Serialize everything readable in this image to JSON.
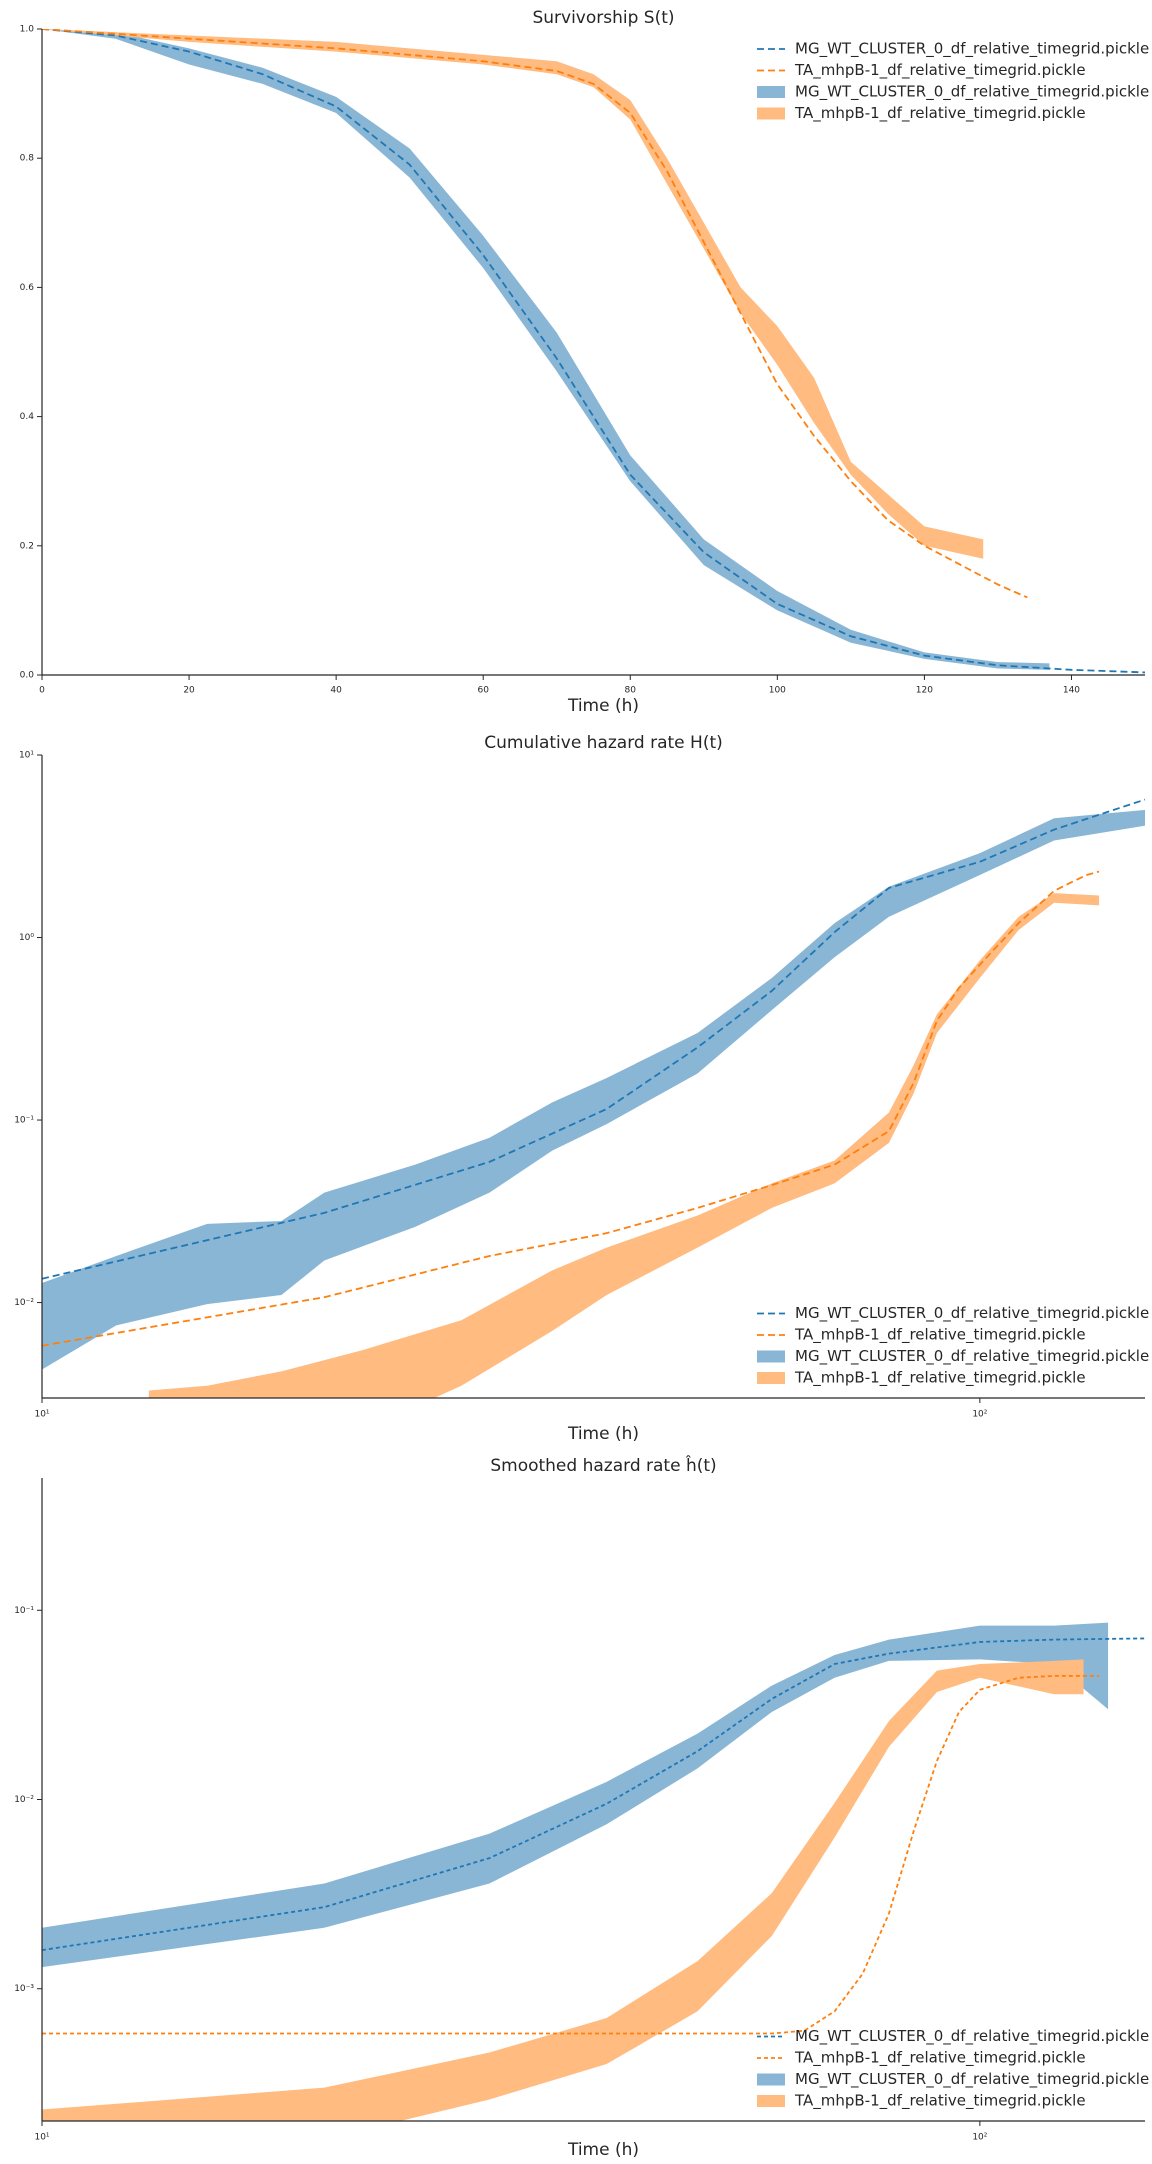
{
  "chart_data": [
    {
      "type": "line",
      "title": "Survivorship S(t)",
      "x_label": "Time (h)",
      "legend": "upper right",
      "xscale": "linear",
      "yscale": "linear",
      "grid": false,
      "xlim": [
        0,
        150
      ],
      "ylim": [
        0,
        1
      ],
      "xticks": [
        0,
        20,
        40,
        60,
        80,
        100,
        120,
        140
      ],
      "yticks": [
        {
          "value": 0,
          "label": "0.0"
        },
        0.2,
        0.4,
        0.6,
        0.8,
        {
          "value": 1,
          "label": "1.0"
        }
      ],
      "series": [
        {
          "name": "MG_WT_CLUSTER_0_df_relative_timegrid.pickle",
          "kind": "line",
          "linestyle": "dashed",
          "color": "#1f77b4",
          "x": [
            0,
            10,
            20,
            30,
            40,
            50,
            60,
            70,
            80,
            90,
            100,
            110,
            120,
            130,
            140,
            150
          ],
          "values": [
            1.0,
            0.99,
            0.965,
            0.93,
            0.88,
            0.79,
            0.65,
            0.49,
            0.31,
            0.19,
            0.11,
            0.06,
            0.03,
            0.015,
            0.008,
            0.004
          ]
        },
        {
          "name": "TA_mhpB-1_df_relative_timegrid.pickle",
          "kind": "line",
          "linestyle": "dashed",
          "color": "#ff7f0e",
          "x": [
            0,
            20,
            40,
            60,
            70,
            75,
            80,
            85,
            90,
            95,
            100,
            105,
            110,
            115,
            120,
            125,
            130,
            134
          ],
          "values": [
            1.0,
            0.985,
            0.97,
            0.95,
            0.935,
            0.915,
            0.87,
            0.78,
            0.67,
            0.56,
            0.45,
            0.37,
            0.3,
            0.24,
            0.2,
            0.17,
            0.14,
            0.12
          ]
        },
        {
          "name": "MG_WT_CLUSTER_0_df_relative_timegrid.pickle",
          "kind": "band",
          "color": "#8ab6d6",
          "x": [
            0,
            10,
            20,
            30,
            40,
            50,
            60,
            70,
            80,
            90,
            100,
            110,
            120,
            130,
            137
          ],
          "upper": [
            1.0,
            0.995,
            0.97,
            0.94,
            0.895,
            0.815,
            0.68,
            0.53,
            0.34,
            0.21,
            0.13,
            0.07,
            0.035,
            0.02,
            0.018
          ],
          "lower": [
            1.0,
            0.985,
            0.945,
            0.915,
            0.87,
            0.77,
            0.63,
            0.47,
            0.3,
            0.17,
            0.1,
            0.05,
            0.025,
            0.01,
            0.008
          ]
        },
        {
          "name": "TA_mhpB-1_df_relative_timegrid.pickle",
          "kind": "band",
          "color": "#ffbb80",
          "x": [
            0,
            20,
            40,
            60,
            70,
            75,
            80,
            85,
            90,
            95,
            100,
            105,
            110,
            115,
            120,
            128
          ],
          "upper": [
            1.0,
            0.99,
            0.98,
            0.96,
            0.95,
            0.93,
            0.89,
            0.8,
            0.7,
            0.6,
            0.54,
            0.46,
            0.33,
            0.28,
            0.23,
            0.21
          ],
          "lower": [
            1.0,
            0.98,
            0.965,
            0.945,
            0.93,
            0.91,
            0.86,
            0.76,
            0.66,
            0.56,
            0.48,
            0.39,
            0.31,
            0.25,
            0.2,
            0.18
          ]
        }
      ]
    },
    {
      "type": "line",
      "title": "Cumulative hazard rate H(t)",
      "x_label": "Time (h)",
      "legend": "lower right",
      "xscale": "log",
      "yscale": "log",
      "grid": false,
      "xlim": [
        10,
        150
      ],
      "ylim": [
        0.003,
        10
      ],
      "xticks": [
        {
          "value": 10,
          "label": "10¹"
        },
        {
          "value": 100,
          "label": "10²"
        }
      ],
      "yticks": [
        {
          "value": 0.01,
          "label": "10⁻²"
        },
        {
          "value": 0.1,
          "label": "10⁻¹"
        },
        {
          "value": 1,
          "label": "10⁰"
        },
        {
          "value": 10,
          "label": "10¹"
        }
      ],
      "series": [
        {
          "name": "MG_WT_CLUSTER_0_df_relative_timegrid.pickle",
          "kind": "line",
          "linestyle": "dashed",
          "color": "#1f77b4",
          "x": [
            10,
            20,
            30,
            40,
            50,
            60,
            70,
            80,
            100,
            120,
            150
          ],
          "values": [
            0.0135,
            0.031,
            0.059,
            0.115,
            0.25,
            0.51,
            1.07,
            1.87,
            2.6,
            3.9,
            5.7
          ]
        },
        {
          "name": "TA_mhpB-1_df_relative_timegrid.pickle",
          "kind": "line",
          "linestyle": "dashed",
          "color": "#ff7f0e",
          "x": [
            10,
            20,
            30,
            40,
            50,
            60,
            70,
            80,
            85,
            90,
            95,
            100,
            110,
            120,
            125,
            130,
            134
          ],
          "values": [
            0.0058,
            0.0107,
            0.018,
            0.024,
            0.033,
            0.044,
            0.057,
            0.087,
            0.16,
            0.35,
            0.53,
            0.71,
            1.2,
            1.8,
            2.0,
            2.2,
            2.3
          ]
        },
        {
          "name": "MG_WT_CLUSTER_0_df_relative_timegrid.pickle",
          "kind": "band",
          "color": "#8ab6d6",
          "x": [
            10,
            12,
            15,
            18,
            20,
            25,
            30,
            35,
            40,
            50,
            60,
            70,
            80,
            100,
            120,
            150
          ],
          "upper": [
            0.0128,
            0.018,
            0.027,
            0.028,
            0.04,
            0.057,
            0.08,
            0.125,
            0.17,
            0.3,
            0.6,
            1.2,
            1.9,
            2.9,
            4.5,
            5
          ],
          "lower": [
            0.0043,
            0.0075,
            0.0098,
            0.011,
            0.017,
            0.026,
            0.04,
            0.068,
            0.095,
            0.18,
            0.4,
            0.78,
            1.3,
            2.2,
            3.4,
            4.1
          ]
        },
        {
          "name": "TA_mhpB-1_df_relative_timegrid.pickle",
          "kind": "band",
          "color": "#ffbb80",
          "x": [
            13,
            15,
            18,
            22,
            28,
            35,
            40,
            50,
            60,
            70,
            80,
            85,
            90,
            100,
            110,
            120,
            134
          ],
          "upper": [
            0.0033,
            0.0035,
            0.0042,
            0.0055,
            0.008,
            0.015,
            0.02,
            0.03,
            0.045,
            0.06,
            0.11,
            0.2,
            0.38,
            0.75,
            1.3,
            1.75,
            1.7
          ],
          "lower": [
            0.002,
            0.002,
            0.002,
            0.002,
            0.0035,
            0.007,
            0.011,
            0.02,
            0.033,
            0.045,
            0.075,
            0.14,
            0.3,
            0.6,
            1.1,
            1.55,
            1.5
          ]
        }
      ]
    },
    {
      "type": "line",
      "title": "Smoothed hazard rate ĥ(t)",
      "x_label": "Time (h)",
      "legend": "lower right",
      "xscale": "log",
      "yscale": "log",
      "grid": false,
      "xlim": [
        10,
        150
      ],
      "ylim": [
        0.0002,
        0.5
      ],
      "xticks": [
        {
          "value": 10,
          "label": "10¹"
        },
        {
          "value": 100,
          "label": "10²"
        }
      ],
      "yticks": [
        {
          "value": 0.001,
          "label": "10⁻³"
        },
        {
          "value": 0.01,
          "label": "10⁻²"
        },
        {
          "value": 0.1,
          "label": "10⁻¹"
        }
      ],
      "series": [
        {
          "name": "MG_WT_CLUSTER_0_df_relative_timegrid.pickle",
          "kind": "line",
          "linestyle": "dashed",
          "color": "#1f77b4",
          "x": [
            10,
            20,
            30,
            40,
            50,
            60,
            70,
            80,
            100,
            120,
            150
          ],
          "values": [
            0.0016,
            0.0027,
            0.0049,
            0.0095,
            0.018,
            0.034,
            0.052,
            0.059,
            0.068,
            0.07,
            0.071
          ]
        },
        {
          "name": "TA_mhpB-1_df_relative_timegrid.pickle",
          "kind": "line",
          "linestyle": "dashed",
          "color": "#ff7f0e",
          "x": [
            10,
            30,
            60,
            65,
            70,
            75,
            80,
            85,
            90,
            95,
            100,
            110,
            120,
            134
          ],
          "values": [
            0.00058,
            0.00058,
            0.00058,
            0.0006,
            0.00076,
            0.0012,
            0.0025,
            0.0068,
            0.016,
            0.029,
            0.038,
            0.044,
            0.045,
            0.045
          ]
        },
        {
          "name": "MG_WT_CLUSTER_0_df_relative_timegrid.pickle",
          "kind": "band",
          "color": "#8ab6d6",
          "x": [
            10,
            20,
            30,
            40,
            50,
            60,
            70,
            80,
            100,
            120,
            137
          ],
          "upper": [
            0.0021,
            0.0036,
            0.0066,
            0.0124,
            0.0223,
            0.04,
            0.058,
            0.07,
            0.083,
            0.083,
            0.086
          ],
          "lower": [
            0.0013,
            0.0021,
            0.0036,
            0.0074,
            0.0146,
            0.029,
            0.044,
            0.054,
            0.055,
            0.052,
            0.03
          ]
        },
        {
          "name": "TA_mhpB-1_df_relative_timegrid.pickle",
          "kind": "band",
          "color": "#ffbb80",
          "x": [
            10,
            20,
            30,
            40,
            50,
            60,
            70,
            80,
            90,
            100,
            120,
            129
          ],
          "upper": [
            0.00023,
            0.0003,
            0.00046,
            0.0007,
            0.0014,
            0.0032,
            0.0096,
            0.026,
            0.048,
            0.052,
            0.054,
            0.055
          ],
          "lower": [
            0.00015,
            0.00016,
            0.00026,
            0.0004,
            0.00076,
            0.0019,
            0.0063,
            0.019,
            0.037,
            0.044,
            0.036,
            0.036
          ]
        }
      ]
    }
  ]
}
